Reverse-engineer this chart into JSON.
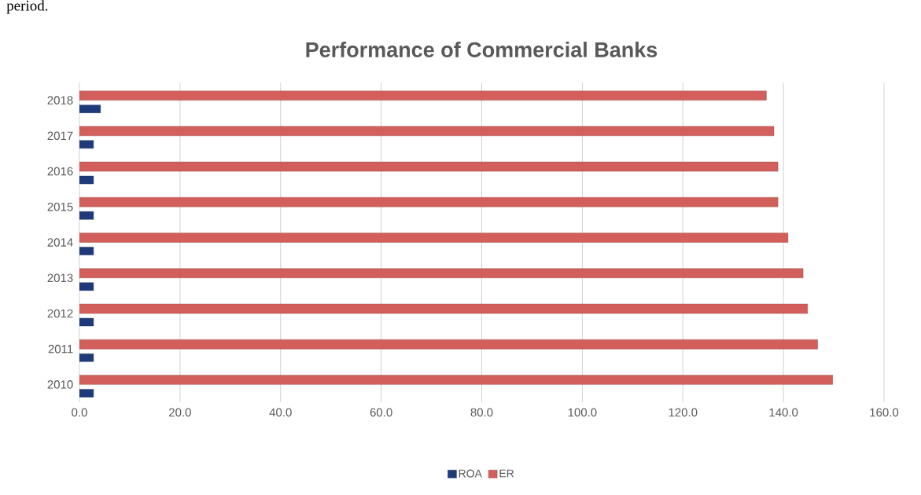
{
  "chart_data": {
    "type": "bar",
    "orientation": "horizontal",
    "title": "Performance of Commercial Banks",
    "annotations": [
      "period."
    ],
    "categories": [
      "2018",
      "2017",
      "2016",
      "2015",
      "2014",
      "2013",
      "2012",
      "2011",
      "2010"
    ],
    "series": [
      {
        "name": "ROA",
        "color": "#1f3a7a",
        "values": [
          4.2,
          2.8,
          2.8,
          2.8,
          2.8,
          2.8,
          2.8,
          2.8,
          2.8
        ]
      },
      {
        "name": "ER",
        "color": "#d25f5c",
        "values": [
          136.6,
          138.1,
          138.9,
          138.9,
          140.9,
          143.9,
          144.8,
          146.8,
          149.8
        ]
      }
    ],
    "xlim": [
      0,
      160
    ],
    "xticks": [
      {
        "value": 0,
        "label": "0.0"
      },
      {
        "value": 20,
        "label": "20.0"
      },
      {
        "value": 40,
        "label": "40.0"
      },
      {
        "value": 60,
        "label": "60.0"
      },
      {
        "value": 80,
        "label": "80.0"
      },
      {
        "value": 100,
        "label": "100.0"
      },
      {
        "value": 120,
        "label": "120.0"
      },
      {
        "value": 140,
        "label": "140.0"
      },
      {
        "value": 160,
        "label": "160.0"
      }
    ],
    "grid": "x",
    "legend": "bottom"
  }
}
